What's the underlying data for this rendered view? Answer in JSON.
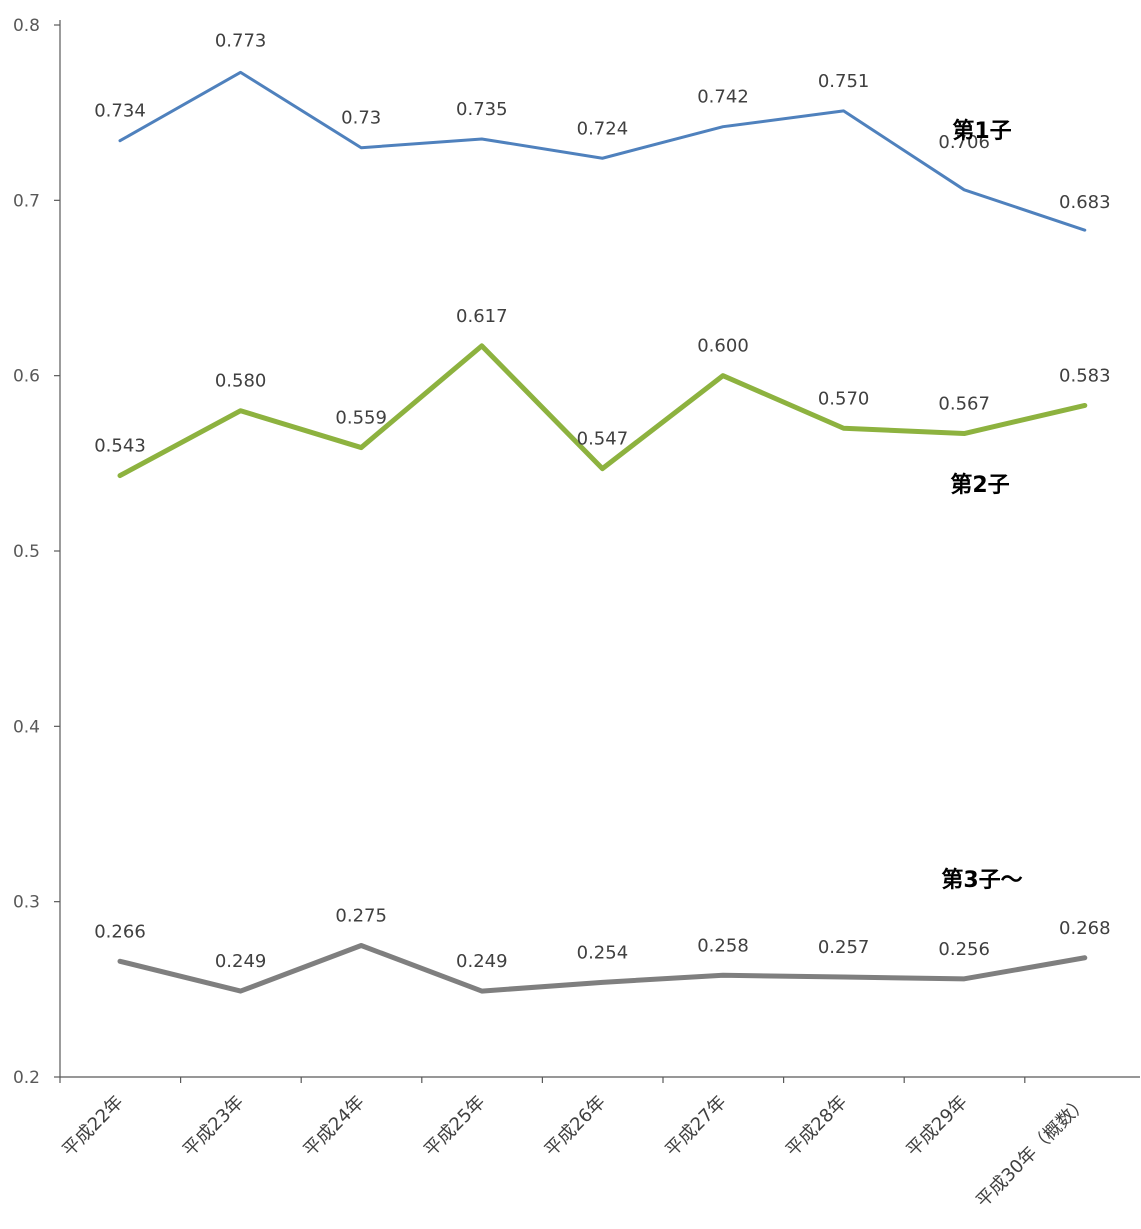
{
  "chart_data": {
    "type": "line",
    "categories": [
      "平成22年",
      "平成23年",
      "平成24年",
      "平成25年",
      "平成26年",
      "平成27年",
      "平成28年",
      "平成29年",
      "平成30年（概数）"
    ],
    "ylim": [
      0.2,
      0.8
    ],
    "yticks": [
      "0.2",
      "0.3",
      "0.4",
      "0.5",
      "0.6",
      "0.7",
      "0.8"
    ],
    "ytick_values": [
      0.2,
      0.3,
      0.4,
      0.5,
      0.6,
      0.7,
      0.8
    ],
    "grid": false,
    "legend": "inline-right",
    "series": [
      {
        "name": "第1子",
        "color": "#4f81bd",
        "values": [
          0.734,
          0.773,
          0.73,
          0.735,
          0.724,
          0.742,
          0.751,
          0.706,
          0.683
        ],
        "labels": [
          "0.734",
          "0.773",
          "0.73",
          "0.735",
          "0.724",
          "0.742",
          "0.751",
          "0.706",
          "0.683"
        ]
      },
      {
        "name": "第2子",
        "color": "#8db23f",
        "values": [
          0.543,
          0.58,
          0.559,
          0.617,
          0.547,
          0.6,
          0.57,
          0.567,
          0.583
        ],
        "labels": [
          "0.543",
          "0.580",
          "0.559",
          "0.617",
          "0.547",
          "0.600",
          "0.570",
          "0.567",
          "0.583"
        ]
      },
      {
        "name": "第3子～",
        "color": "#7f7f7f",
        "values": [
          0.266,
          0.249,
          0.275,
          0.249,
          0.254,
          0.258,
          0.257,
          0.256,
          0.268
        ],
        "labels": [
          "0.266",
          "0.249",
          "0.275",
          "0.249",
          "0.254",
          "0.258",
          "0.257",
          "0.256",
          "0.268"
        ]
      }
    ]
  }
}
